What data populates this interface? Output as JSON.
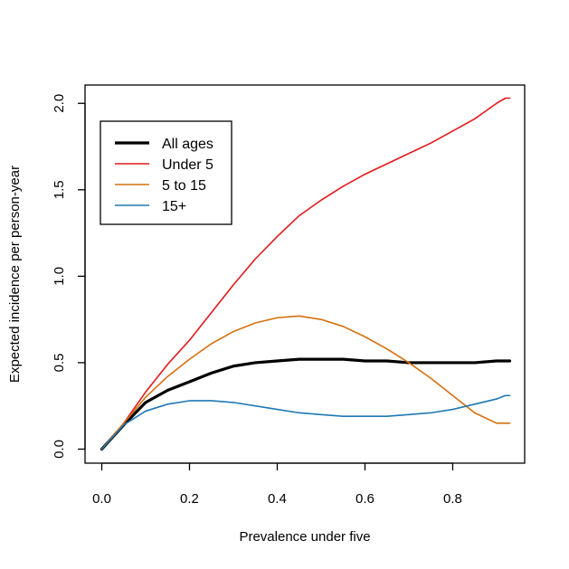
{
  "chart_data": {
    "type": "line",
    "xlabel": "Prevalence under five",
    "ylabel": "Expected incidence per person-year",
    "xlim": [
      0.0,
      0.93
    ],
    "ylim": [
      0.0,
      2.03
    ],
    "x_ticks": [
      0.0,
      0.2,
      0.4,
      0.6,
      0.8
    ],
    "x_tick_labels": [
      "0.0",
      "0.2",
      "0.4",
      "0.6",
      "0.8"
    ],
    "y_ticks": [
      0.0,
      0.5,
      1.0,
      1.5,
      2.0
    ],
    "y_tick_labels": [
      "0.0",
      "0.5",
      "1.0",
      "1.5",
      "2.0"
    ],
    "grid": false,
    "legend_position": "top-left",
    "series": [
      {
        "name": "All ages",
        "color": "#000000",
        "line_width": "thick",
        "x": [
          0.0,
          0.05,
          0.1,
          0.15,
          0.2,
          0.25,
          0.3,
          0.35,
          0.4,
          0.45,
          0.5,
          0.55,
          0.6,
          0.65,
          0.7,
          0.75,
          0.8,
          0.85,
          0.9,
          0.93
        ],
        "y": [
          0.0,
          0.14,
          0.27,
          0.34,
          0.39,
          0.44,
          0.48,
          0.5,
          0.51,
          0.52,
          0.52,
          0.52,
          0.51,
          0.51,
          0.5,
          0.5,
          0.5,
          0.5,
          0.51,
          0.51
        ]
      },
      {
        "name": "Under 5",
        "color": "#e3191c",
        "line_width": "normal",
        "x": [
          0.0,
          0.05,
          0.1,
          0.15,
          0.2,
          0.25,
          0.3,
          0.35,
          0.4,
          0.45,
          0.5,
          0.55,
          0.6,
          0.65,
          0.7,
          0.75,
          0.8,
          0.85,
          0.9,
          0.92,
          0.93
        ],
        "y": [
          0.0,
          0.15,
          0.33,
          0.49,
          0.63,
          0.79,
          0.95,
          1.1,
          1.23,
          1.35,
          1.44,
          1.52,
          1.59,
          1.65,
          1.71,
          1.77,
          1.84,
          1.91,
          2.0,
          2.03,
          2.03
        ]
      },
      {
        "name": "5 to 15",
        "color": "#d4700f",
        "line_width": "normal",
        "x": [
          0.0,
          0.05,
          0.1,
          0.15,
          0.2,
          0.25,
          0.3,
          0.35,
          0.4,
          0.45,
          0.5,
          0.55,
          0.6,
          0.65,
          0.7,
          0.75,
          0.8,
          0.85,
          0.9,
          0.92,
          0.93
        ],
        "y": [
          0.0,
          0.15,
          0.3,
          0.42,
          0.52,
          0.61,
          0.68,
          0.73,
          0.76,
          0.77,
          0.75,
          0.71,
          0.65,
          0.58,
          0.5,
          0.41,
          0.31,
          0.21,
          0.15,
          0.15,
          0.15
        ]
      },
      {
        "name": "15+",
        "color": "#1f78b4",
        "line_width": "normal",
        "x": [
          0.0,
          0.05,
          0.1,
          0.15,
          0.2,
          0.25,
          0.3,
          0.35,
          0.4,
          0.45,
          0.5,
          0.55,
          0.6,
          0.65,
          0.7,
          0.75,
          0.8,
          0.85,
          0.9,
          0.92,
          0.93
        ],
        "y": [
          0.0,
          0.14,
          0.22,
          0.26,
          0.28,
          0.28,
          0.27,
          0.25,
          0.23,
          0.21,
          0.2,
          0.19,
          0.19,
          0.19,
          0.2,
          0.21,
          0.23,
          0.26,
          0.29,
          0.31,
          0.31
        ]
      }
    ]
  }
}
